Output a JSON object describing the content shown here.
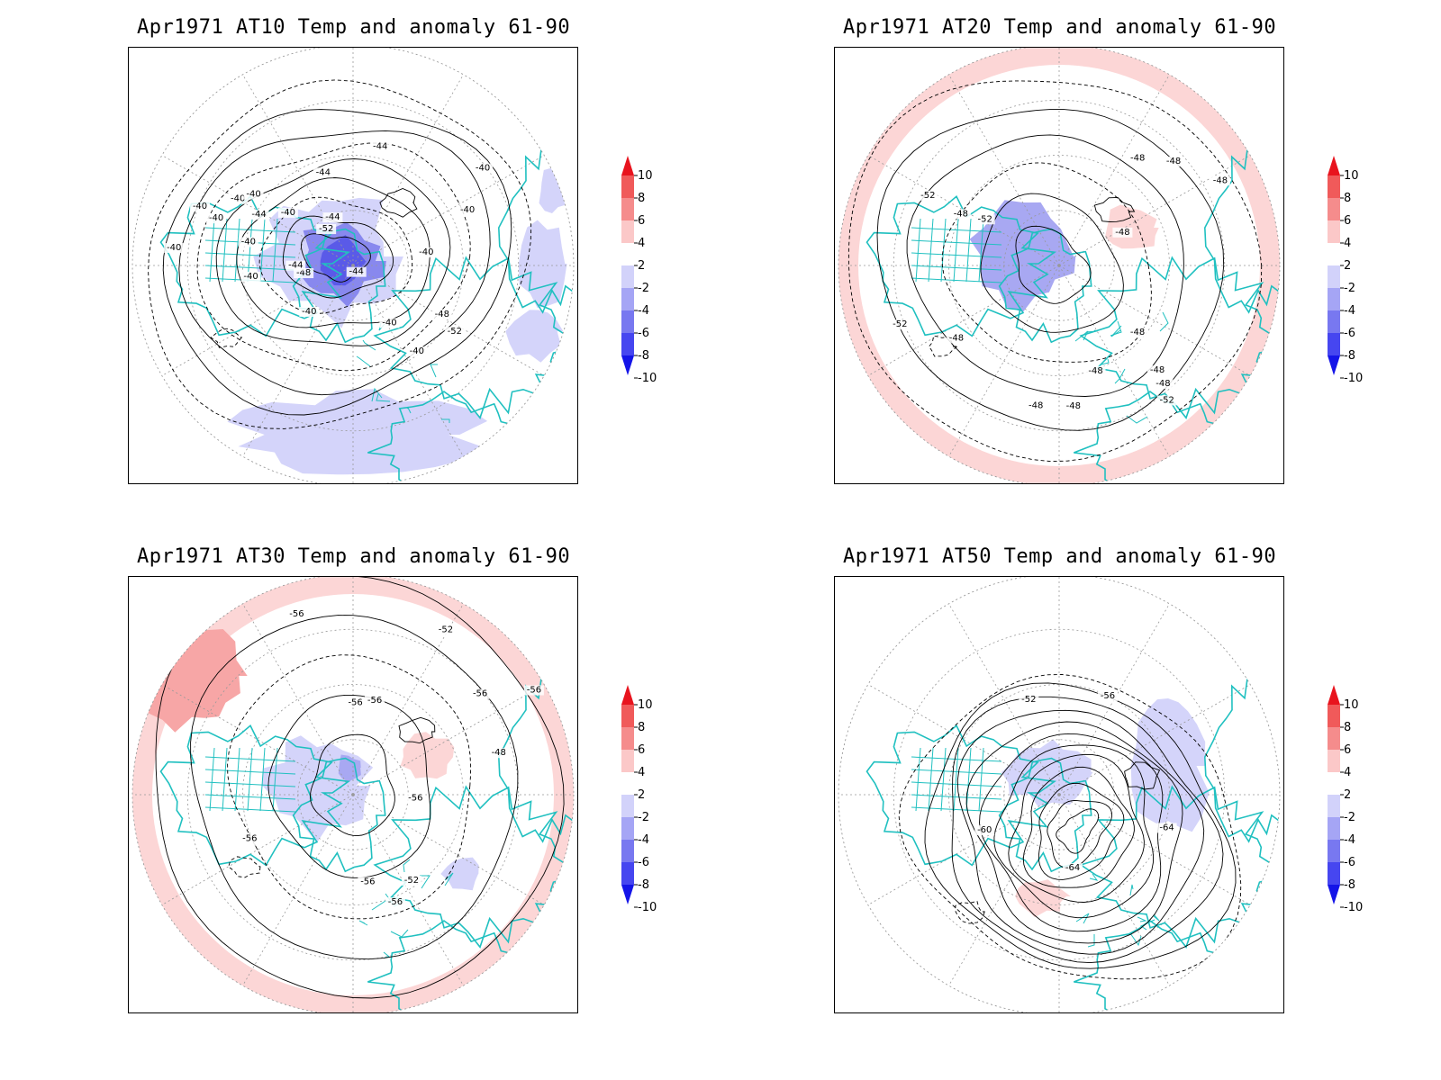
{
  "panels": [
    {
      "title": "Apr1971 AT10 Temp and anomaly 61-90",
      "contour_labels": [
        "-40",
        "-40",
        "-40",
        "-40",
        "-40",
        "-40",
        "-40",
        "-40",
        "-40",
        "-48",
        "-44",
        "-44",
        "-44",
        "-52",
        "-52",
        "-48",
        "-40",
        "-40",
        "-44",
        "-40",
        "-40",
        "-40",
        "-44",
        "-44"
      ],
      "anomaly_sign": "negative"
    },
    {
      "title": "Apr1971 AT20 Temp and anomaly 61-90",
      "contour_labels": [
        "-48",
        "-48",
        "-48",
        "-52",
        "-48",
        "-48",
        "-48",
        "-48",
        "-52",
        "-52",
        "-48",
        "-48",
        "-52",
        "-48",
        "-48",
        "-48"
      ],
      "anomaly_sign": "positive-ring"
    },
    {
      "title": "Apr1971 AT30 Temp and anomaly 61-90",
      "contour_labels": [
        "-56",
        "-56",
        "-52",
        "-48",
        "-56",
        "-52",
        "-56",
        "-56",
        "-56",
        "-56",
        "-56",
        "-56"
      ],
      "anomaly_sign": "positive-ring"
    },
    {
      "title": "Apr1971 AT50 Temp and anomaly 61-90",
      "contour_labels": [
        "-64",
        "-52",
        "-56",
        "-60",
        "-64"
      ],
      "anomaly_sign": "mixed"
    }
  ],
  "colorbar": {
    "levels": [
      "10",
      "8",
      "6",
      "4",
      "2",
      "-2",
      "-4",
      "-6",
      "-8",
      "-10"
    ],
    "colors": [
      "#e8141e",
      "#f05a5a",
      "#f58c8c",
      "#fbc8c8",
      "#ffffff",
      "#d2d2fa",
      "#a5a5f5",
      "#7878f0",
      "#4646f0",
      "#1414e8"
    ]
  },
  "colors": {
    "coastline": "#20c0c0",
    "contour": "#000000",
    "grid": "#999999",
    "neg_anomaly": "#d4d4fa",
    "neg_anomaly_strong": "#8888ee",
    "pos_anomaly": "#fcd6d6",
    "pos_anomaly_strong": "#f7a6a6"
  }
}
